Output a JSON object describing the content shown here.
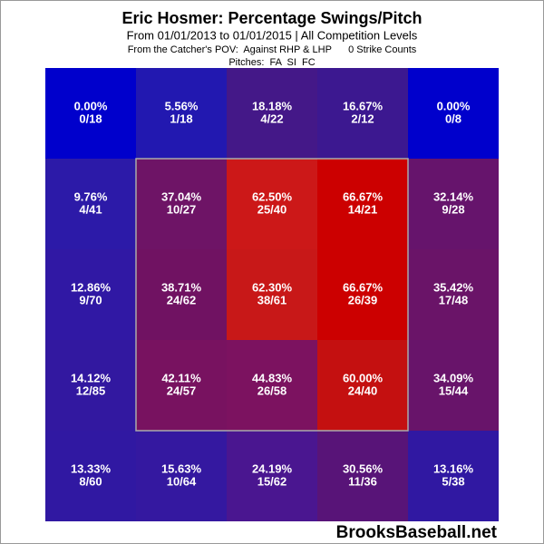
{
  "chart_data": {
    "type": "heatmap",
    "title": "Eric Hosmer: Percentage Swings/Pitch",
    "subtitle": "From 01/01/2013 to 01/01/2015 | All Competition Levels",
    "notes": [
      "From the Catcher's POV:  Against RHP & LHP      0 Strike Counts",
      "Pitches:  FA  SI  FC"
    ],
    "watermark": "BrooksBaseball.net",
    "values": [
      [
        0.0,
        5.56,
        18.18,
        16.67,
        0.0
      ],
      [
        9.76,
        37.04,
        62.5,
        66.67,
        32.14
      ],
      [
        12.86,
        38.71,
        62.3,
        66.67,
        35.42
      ],
      [
        14.12,
        42.11,
        44.83,
        60.0,
        34.09
      ],
      [
        13.33,
        15.63,
        24.19,
        30.56,
        13.16
      ]
    ],
    "value_labels": [
      [
        "0.00%",
        "5.56%",
        "18.18%",
        "16.67%",
        "0.00%"
      ],
      [
        "9.76%",
        "37.04%",
        "62.50%",
        "66.67%",
        "32.14%"
      ],
      [
        "12.86%",
        "38.71%",
        "62.30%",
        "66.67%",
        "35.42%"
      ],
      [
        "14.12%",
        "42.11%",
        "44.83%",
        "60.00%",
        "34.09%"
      ],
      [
        "13.33%",
        "15.63%",
        "24.19%",
        "30.56%",
        "13.16%"
      ]
    ],
    "counts": [
      [
        "0/18",
        "1/18",
        "4/22",
        "2/12",
        "0/8"
      ],
      [
        "4/41",
        "10/27",
        "25/40",
        "14/21",
        "9/28"
      ],
      [
        "9/70",
        "24/62",
        "38/61",
        "26/39",
        "17/48"
      ],
      [
        "12/85",
        "24/57",
        "26/58",
        "24/40",
        "15/44"
      ],
      [
        "8/60",
        "10/64",
        "15/62",
        "11/36",
        "5/38"
      ]
    ],
    "colors": [
      [
        "#0000cc",
        "#2218b0",
        "#441888",
        "#3c1890",
        "#0000cc"
      ],
      [
        "#2c1aa8",
        "#6e1466",
        "#cc1818",
        "#cc0000",
        "#66146c"
      ],
      [
        "#3018a4",
        "#701262",
        "#c81818",
        "#cc0000",
        "#6a1468"
      ],
      [
        "#3218a0",
        "#781260",
        "#7c1260",
        "#c41010",
        "#68146a"
      ],
      [
        "#3018a2",
        "#3418a0",
        "#4a1690",
        "#581478",
        "#3018a2"
      ]
    ]
  }
}
